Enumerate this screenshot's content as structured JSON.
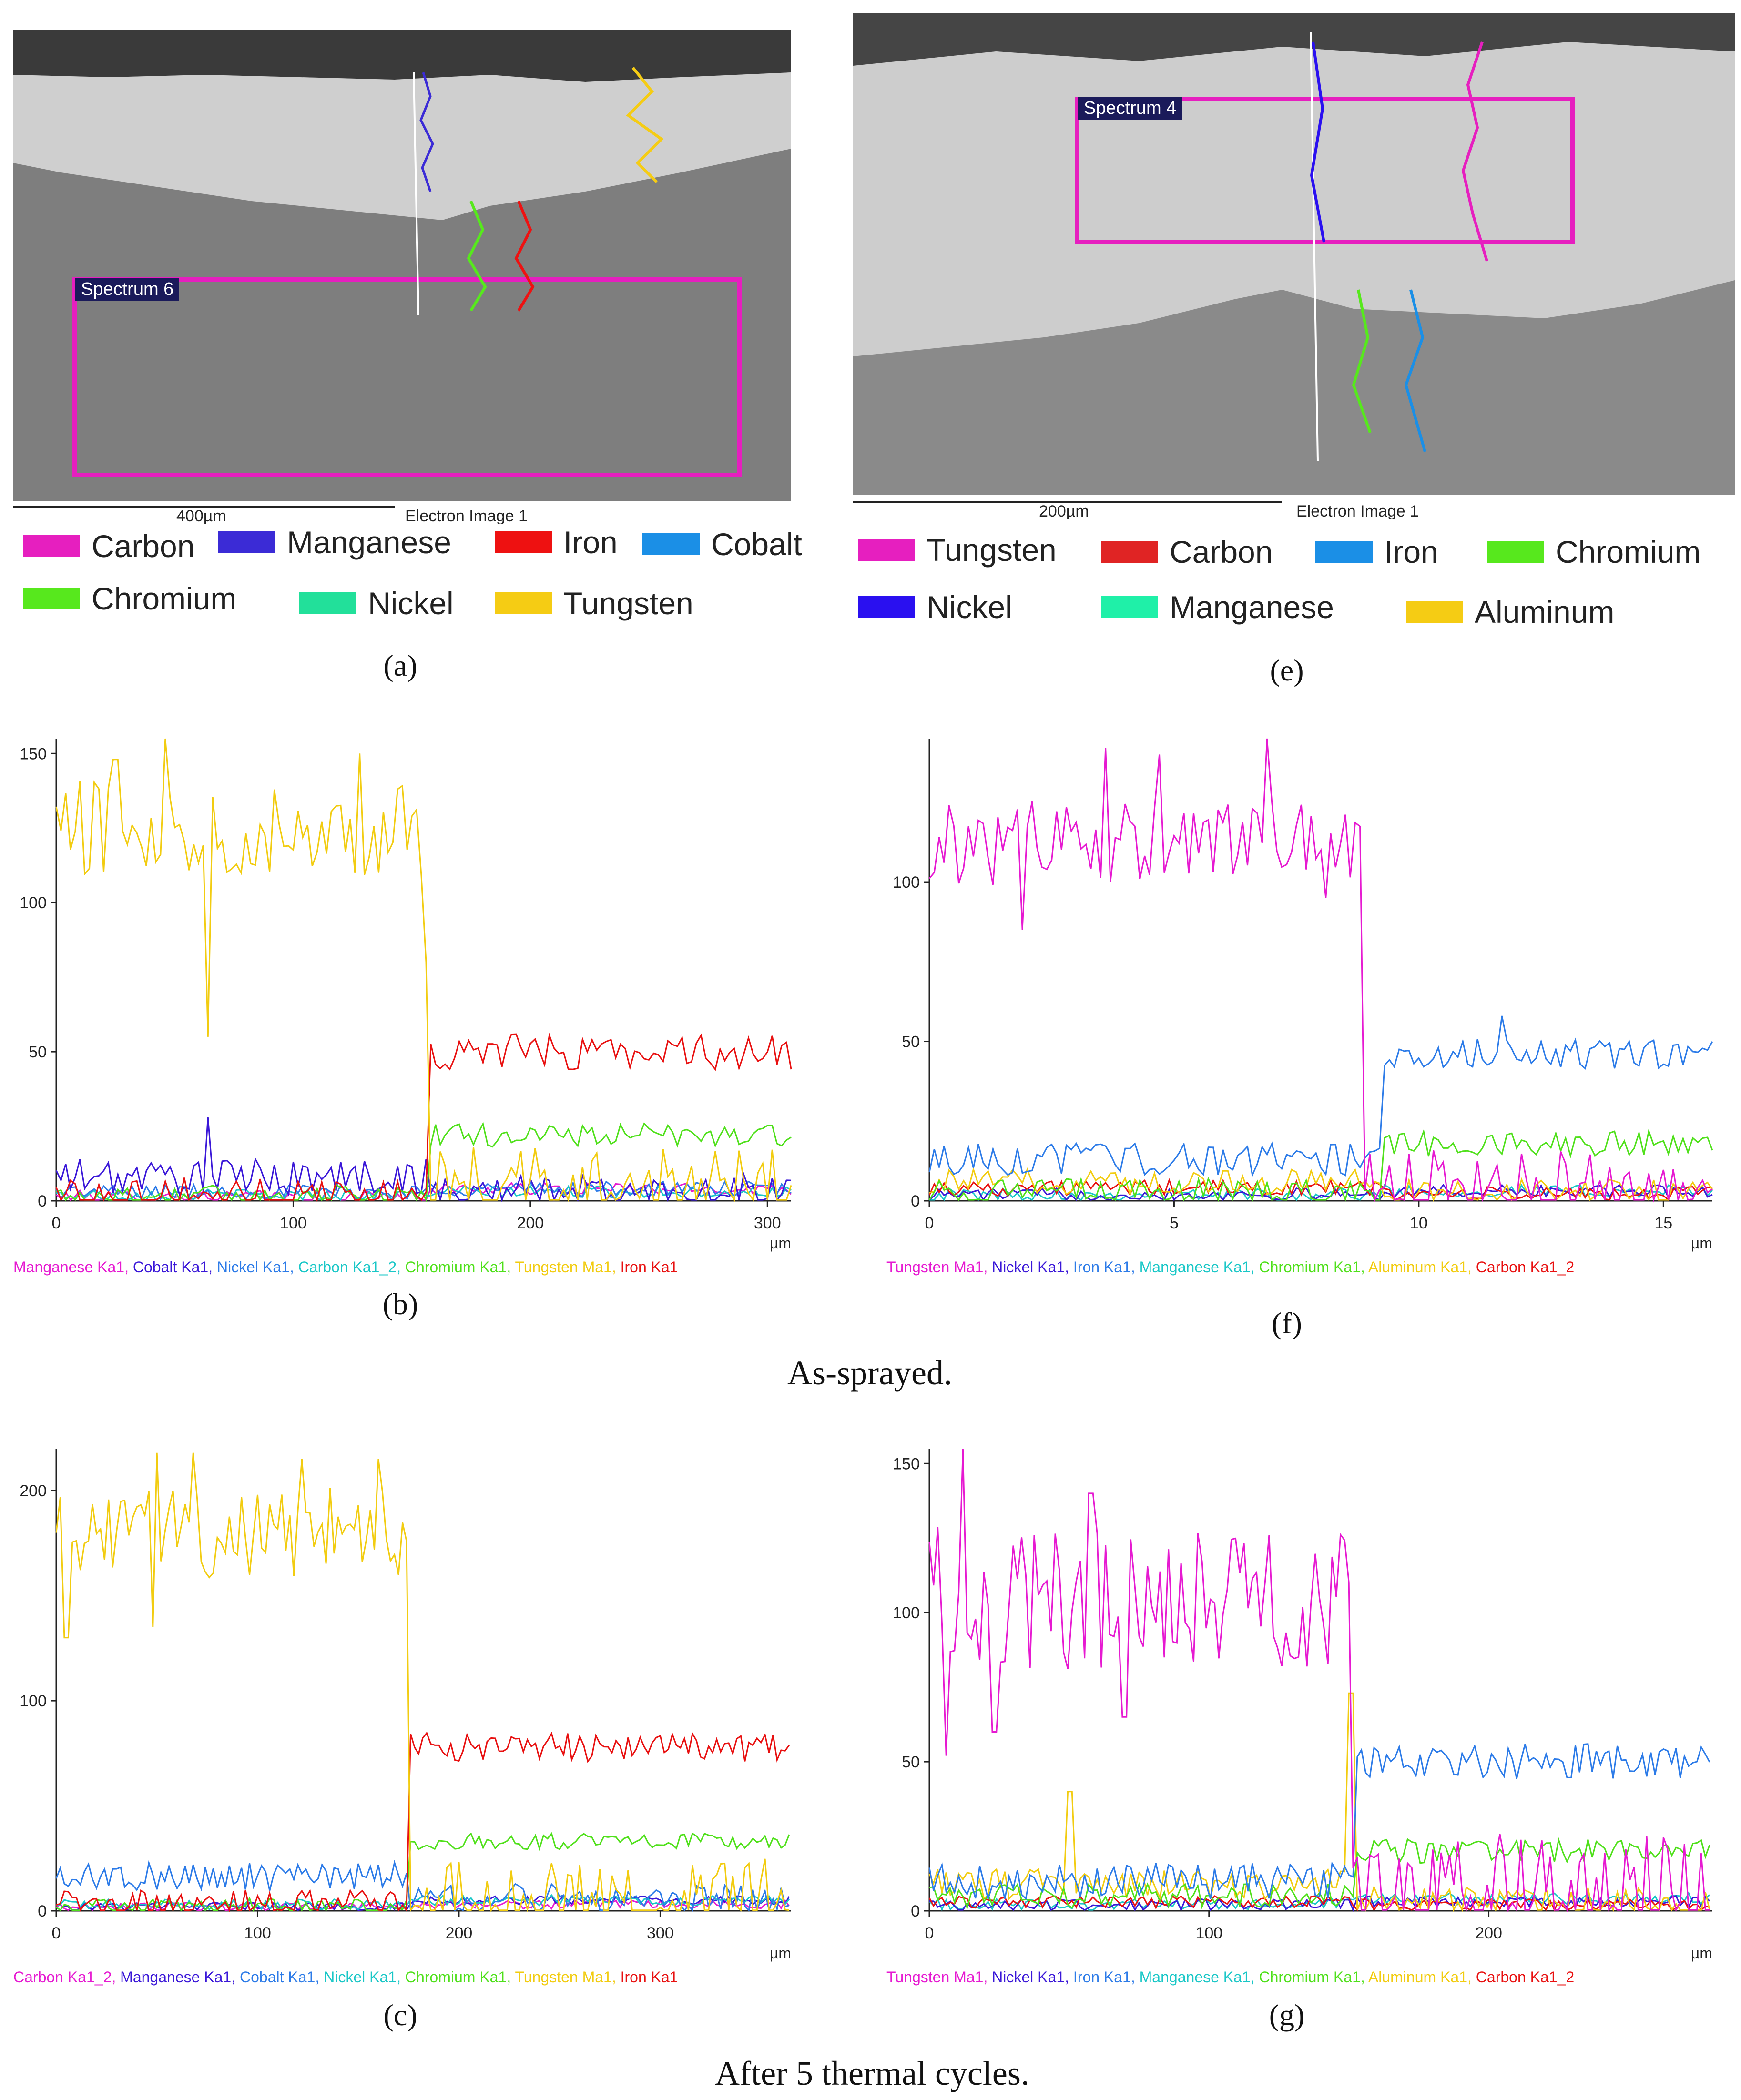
{
  "panel_labels": {
    "a": "(a)",
    "b": "(b)",
    "c": "(c)",
    "e": "(e)",
    "f": "(f)",
    "g": "(g)"
  },
  "captions": {
    "as_sprayed": "As-sprayed.",
    "after_cycles": "After 5 thermal cycles."
  },
  "images": [
    {
      "spectrum_label": "Spectrum 6",
      "scale_label": "400µm",
      "image_label": "Electron Image 1",
      "legend": [
        {
          "name": "Carbon",
          "color": "#e61fbf"
        },
        {
          "name": "Manganese",
          "color": "#3b2bd6"
        },
        {
          "name": "Iron",
          "color": "#ee1111"
        },
        {
          "name": "Cobalt",
          "color": "#1b8fe6"
        },
        {
          "name": "Chromium",
          "color": "#57e81d"
        },
        {
          "name": "Nickel",
          "color": "#22e09a"
        },
        {
          "name": "Tungsten",
          "color": "#f5cc14"
        }
      ]
    },
    {
      "spectrum_label": "Spectrum 4",
      "scale_label": "200µm",
      "image_label": "Electron Image 1",
      "legend": [
        {
          "name": "Tungsten",
          "color": "#e61fbf"
        },
        {
          "name": "Carbon",
          "color": "#e02424"
        },
        {
          "name": "Iron",
          "color": "#1b8fe6"
        },
        {
          "name": "Chromium",
          "color": "#57e81d"
        },
        {
          "name": "Nickel",
          "color": "#2a10f0"
        },
        {
          "name": "Manganese",
          "color": "#1ff0a8"
        },
        {
          "name": "Aluminum",
          "color": "#f5cc14"
        }
      ]
    }
  ],
  "chart_data": [
    {
      "id": "b",
      "type": "line",
      "xlabel": "µm",
      "x_range": [
        0,
        310
      ],
      "ylim": [
        0,
        155
      ],
      "xticks": [
        0,
        100,
        200,
        300
      ],
      "yticks": [
        0,
        50,
        100,
        150
      ],
      "x_step": 2,
      "legend": [
        {
          "name": "Manganese Ka1",
          "color": "#e619d1"
        },
        {
          "name": "Cobalt Ka1",
          "color": "#3a17d8"
        },
        {
          "name": "Nickel Ka1",
          "color": "#2c7be8"
        },
        {
          "name": "Carbon Ka1_2",
          "color": "#19c7c7"
        },
        {
          "name": "Chromium Ka1",
          "color": "#4fe01a"
        },
        {
          "name": "Tungsten Ma1",
          "color": "#f2cc10"
        },
        {
          "name": "Iron Ka1",
          "color": "#e81010"
        }
      ],
      "series": [
        {
          "name": "Tungsten Ma1",
          "color": "#f2cc10",
          "interface": 158,
          "before": 125,
          "after": 2,
          "noise": 16,
          "spikes": [
            [
              64,
              55
            ],
            [
              25,
              148
            ],
            [
              46,
              155
            ],
            [
              128,
              150
            ],
            [
              156,
              80
            ]
          ]
        },
        {
          "name": "Iron Ka1",
          "color": "#e81010",
          "interface": 158,
          "before": 2,
          "after": 50,
          "noise": 6,
          "spikes": []
        },
        {
          "name": "Chromium Ka1",
          "color": "#4fe01a",
          "interface": 158,
          "before": 1.5,
          "after": 22,
          "noise": 4,
          "spikes": []
        },
        {
          "name": "Cobalt Ka1",
          "color": "#3a17d8",
          "interface": 158,
          "before": 8,
          "after": 3,
          "noise": 6,
          "spikes": [
            [
              64,
              28
            ]
          ]
        },
        {
          "name": "Nickel Ka1",
          "color": "#2c7be8",
          "interface": 158,
          "before": 3,
          "after": 4,
          "noise": 2.5,
          "spikes": []
        },
        {
          "name": "Carbon Ka1_2",
          "color": "#19c7c7",
          "interface": 158,
          "before": 2,
          "after": 3,
          "noise": 2,
          "spikes": []
        },
        {
          "name": "Manganese Ka1",
          "color": "#e619d1",
          "interface": 158,
          "before": 1.5,
          "after": 4,
          "noise": 2,
          "spikes": []
        }
      ]
    },
    {
      "id": "f",
      "type": "line",
      "xlabel": "µm",
      "x_range": [
        0,
        16
      ],
      "ylim": [
        0,
        145
      ],
      "xticks": [
        0,
        5,
        10,
        15
      ],
      "yticks": [
        0,
        50,
        100
      ],
      "x_step": 0.1,
      "legend": [
        {
          "name": "Tungsten Ma1",
          "color": "#e619d1"
        },
        {
          "name": "Nickel Ka1",
          "color": "#3a17d8"
        },
        {
          "name": "Iron Ka1",
          "color": "#2c7be8"
        },
        {
          "name": "Manganese Ka1",
          "color": "#19c7c7"
        },
        {
          "name": "Chromium Ka1",
          "color": "#4fe01a"
        },
        {
          "name": "Aluminum Ka1",
          "color": "#f2cc10"
        },
        {
          "name": "Carbon Ka1_2",
          "color": "#e81010"
        }
      ],
      "series": [
        {
          "name": "Tungsten Ma1",
          "color": "#e619d1",
          "interface": 8.8,
          "before": 112,
          "after": 2,
          "noise": 14,
          "spikes": [
            [
              3.6,
              142
            ],
            [
              4.7,
              140
            ],
            [
              6.9,
              145
            ],
            [
              1.9,
              85
            ],
            [
              8.1,
              95
            ]
          ]
        },
        {
          "name": "Iron Ka1",
          "color": "#2c7be8",
          "interface": 9.2,
          "before": 13,
          "after": 46,
          "noise": 5,
          "spikes": [
            [
              11.7,
              58
            ]
          ]
        },
        {
          "name": "Chromium Ka1",
          "color": "#4fe01a",
          "interface": 9.2,
          "before": 3,
          "after": 18,
          "noise": 4,
          "spikes": []
        },
        {
          "name": "Aluminum Ka1",
          "color": "#f2cc10",
          "interface": 9.2,
          "before": 6,
          "after": 3,
          "noise": 4,
          "spikes": []
        },
        {
          "name": "Carbon Ka1_2",
          "color": "#e81010",
          "interface": 9.2,
          "before": 4,
          "after": 2,
          "noise": 2.5,
          "spikes": []
        },
        {
          "name": "Nickel Ka1",
          "color": "#3a17d8",
          "interface": 9.2,
          "before": 2,
          "after": 3,
          "noise": 2,
          "spikes": []
        },
        {
          "name": "Manganese Ka1",
          "color": "#19c7c7",
          "interface": 9.2,
          "before": 2,
          "after": 3,
          "noise": 2,
          "spikes": []
        }
      ]
    },
    {
      "id": "c",
      "type": "line",
      "xlabel": "µm",
      "x_range": [
        0,
        365
      ],
      "ylim": [
        0,
        220
      ],
      "xticks": [
        0,
        100,
        200,
        300
      ],
      "yticks": [
        0,
        100,
        200
      ],
      "x_step": 2,
      "legend": [
        {
          "name": "Carbon Ka1_2",
          "color": "#e619d1"
        },
        {
          "name": "Manganese Ka1",
          "color": "#3a17d8"
        },
        {
          "name": "Cobalt Ka1",
          "color": "#2c7be8"
        },
        {
          "name": "Nickel Ka1",
          "color": "#19c7c7"
        },
        {
          "name": "Chromium Ka1",
          "color": "#4fe01a"
        },
        {
          "name": "Tungsten Ma1",
          "color": "#f2cc10"
        },
        {
          "name": "Iron Ka1",
          "color": "#e81010"
        }
      ],
      "series": [
        {
          "name": "Tungsten Ma1",
          "color": "#f2cc10",
          "interface": 175,
          "before": 180,
          "after": 3,
          "noise": 22,
          "spikes": [
            [
              5,
              130
            ],
            [
              50,
              218
            ],
            [
              68,
              218
            ],
            [
              122,
              215
            ],
            [
              160,
              215
            ],
            [
              48,
              135
            ]
          ]
        },
        {
          "name": "Iron Ka1",
          "color": "#e81010",
          "interface": 176,
          "before": 3,
          "after": 78,
          "noise": 7,
          "spikes": []
        },
        {
          "name": "Chromium Ka1",
          "color": "#4fe01a",
          "interface": 176,
          "before": 2,
          "after": 33,
          "noise": 4,
          "spikes": []
        },
        {
          "name": "Cobalt Ka1",
          "color": "#2c7be8",
          "interface": 176,
          "before": 16,
          "after": 6,
          "noise": 7,
          "spikes": []
        },
        {
          "name": "Nickel Ka1",
          "color": "#19c7c7",
          "interface": 176,
          "before": 3,
          "after": 5,
          "noise": 2.5,
          "spikes": []
        },
        {
          "name": "Manganese Ka1",
          "color": "#3a17d8",
          "interface": 176,
          "before": 2,
          "after": 5,
          "noise": 2,
          "spikes": []
        },
        {
          "name": "Carbon Ka1_2",
          "color": "#e619d1",
          "interface": 176,
          "before": 2,
          "after": 3,
          "noise": 2,
          "spikes": []
        }
      ]
    },
    {
      "id": "g",
      "type": "line",
      "xlabel": "µm",
      "x_range": [
        0,
        280
      ],
      "ylim": [
        0,
        155
      ],
      "xticks": [
        0,
        100,
        200
      ],
      "yticks": [
        0,
        50,
        100,
        150
      ],
      "x_step": 1.5,
      "legend": [
        {
          "name": "Tungsten Ma1",
          "color": "#e619d1"
        },
        {
          "name": "Nickel Ka1",
          "color": "#3a17d8"
        },
        {
          "name": "Iron Ka1",
          "color": "#2c7be8"
        },
        {
          "name": "Manganese Ka1",
          "color": "#19c7c7"
        },
        {
          "name": "Chromium Ka1",
          "color": "#4fe01a"
        },
        {
          "name": "Aluminum Ka1",
          "color": "#f2cc10"
        },
        {
          "name": "Carbon Ka1_2",
          "color": "#e81010"
        }
      ],
      "series": [
        {
          "name": "Tungsten Ma1",
          "color": "#e619d1",
          "interface": 151,
          "before": 105,
          "after": 2,
          "noise": 24,
          "spikes": [
            [
              6,
              52
            ],
            [
              12,
              155
            ],
            [
              23,
              60
            ],
            [
              70,
              65
            ],
            [
              58,
              140
            ]
          ]
        },
        {
          "name": "Iron Ka1",
          "color": "#2c7be8",
          "interface": 152,
          "before": 10,
          "after": 50,
          "noise": 6,
          "spikes": []
        },
        {
          "name": "Chromium Ka1",
          "color": "#4fe01a",
          "interface": 152,
          "before": 5,
          "after": 20,
          "noise": 4,
          "spikes": []
        },
        {
          "name": "Aluminum Ka1",
          "color": "#f2cc10",
          "interface": 152,
          "before": 9,
          "after": 3,
          "noise": 5,
          "spikes": [
            [
              50,
              40
            ],
            [
              151,
              73
            ]
          ]
        },
        {
          "name": "Carbon Ka1_2",
          "color": "#e81010",
          "interface": 152,
          "before": 3,
          "after": 2,
          "noise": 2,
          "spikes": []
        },
        {
          "name": "Nickel Ka1",
          "color": "#3a17d8",
          "interface": 152,
          "before": 2,
          "after": 3,
          "noise": 2,
          "spikes": []
        },
        {
          "name": "Manganese Ka1",
          "color": "#19c7c7",
          "interface": 152,
          "before": 2,
          "after": 4,
          "noise": 2,
          "spikes": []
        }
      ]
    }
  ]
}
